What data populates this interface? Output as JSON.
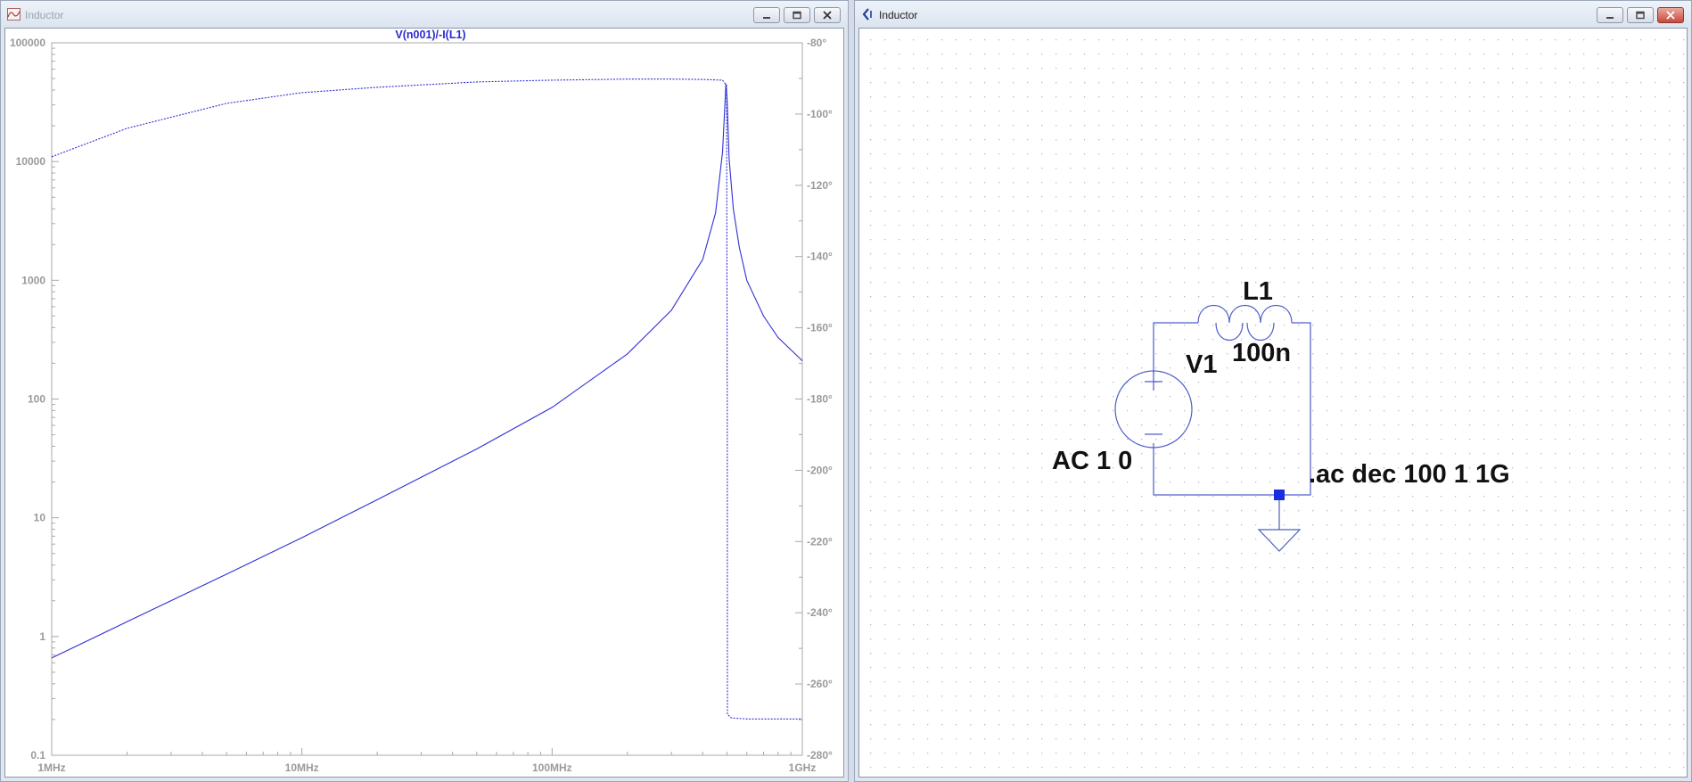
{
  "plot_window": {
    "title": "Inductor"
  },
  "schematic_window": {
    "title": "Inductor"
  },
  "schematic": {
    "inductor_ref": "L1",
    "inductor_value": "100n",
    "source_ref": "V1",
    "source_value": "AC 1 0",
    "directive": ".ac dec 100 1 1G"
  },
  "colors": {
    "trace": "#2f2fd6",
    "trace_title": "#2b2bd0",
    "axis_text": "#9a9a9a",
    "wire": "#4d5dc8",
    "junction": "#1a2ee0"
  },
  "chart_data": {
    "type": "line",
    "title": "V(n001)/-I(L1)",
    "x_axis": {
      "scale": "log",
      "range_hz": [
        1000000,
        1000000000
      ],
      "ticks": [
        "1MHz",
        "10MHz",
        "100MHz",
        "1GHz"
      ]
    },
    "y_left": {
      "scale": "log",
      "range": [
        0.1,
        100000
      ],
      "ticks": [
        "100000",
        "10000",
        "1000",
        "100",
        "10",
        "1",
        "0.1"
      ]
    },
    "y_right": {
      "scale": "linear",
      "unit": "°",
      "range": [
        -280,
        -80
      ],
      "ticks": [
        "-80°",
        "-100°",
        "-120°",
        "-140°",
        "-160°",
        "-180°",
        "-200°",
        "-220°",
        "-240°",
        "-260°",
        "-280°"
      ]
    },
    "grid": false,
    "series": [
      {
        "axis": "left",
        "style": "solid",
        "x": [
          1000000,
          2000000,
          5000000,
          10000000,
          20000000,
          50000000,
          100000000,
          200000000,
          300000000,
          400000000,
          450000000,
          480000000,
          495000000,
          500000000,
          510000000,
          530000000,
          560000000,
          600000000,
          700000000,
          800000000,
          1000000000
        ],
        "y": [
          0.66,
          1.33,
          3.35,
          6.8,
          14.2,
          38,
          85,
          240,
          560,
          1500,
          3700,
          12000,
          45000,
          35000,
          10500,
          4000,
          1900,
          1000,
          500,
          330,
          210
        ]
      },
      {
        "axis": "right",
        "style": "dotted",
        "x": [
          1000000,
          2000000,
          5000000,
          10000000,
          20000000,
          50000000,
          100000000,
          200000000,
          300000000,
          400000000,
          480000000,
          498000000,
          501000000,
          502000000,
          520000000,
          600000000,
          1000000000
        ],
        "y": [
          -112,
          -104,
          -97,
          -94,
          -92.5,
          -91,
          -90.5,
          -90.2,
          -90.2,
          -90.3,
          -90.5,
          -92,
          -180,
          -268.5,
          -269.5,
          -269.8,
          -269.8
        ]
      }
    ]
  }
}
